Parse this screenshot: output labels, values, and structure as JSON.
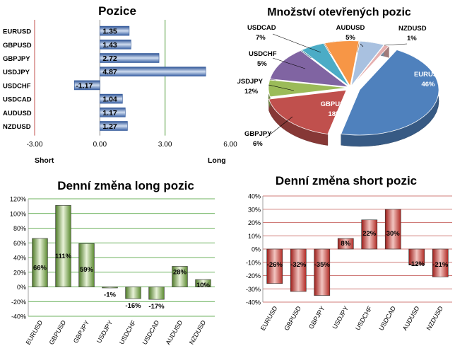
{
  "chart_data": [
    {
      "type": "bar",
      "orientation": "horizontal",
      "title": "Pozice",
      "categories": [
        "EURUSD",
        "GBPUSD",
        "GBPJPY",
        "USDJPY",
        "USDCHF",
        "USDCAD",
        "AUDUSD",
        "NZDUSD"
      ],
      "values": [
        1.35,
        1.43,
        2.72,
        4.87,
        -1.17,
        1.04,
        1.17,
        1.27
      ],
      "value_labels": [
        "1.35",
        "1.43",
        "2.72",
        "4.87",
        "-1.17",
        "1.04",
        "1.17",
        "1.27"
      ],
      "xlim": [
        -3,
        6
      ],
      "ticks": [
        "-3.00",
        "0.00",
        "3.00",
        "6.00"
      ],
      "left_label": "Short",
      "right_label": "Long",
      "colors": {
        "bar": "#4a72b0",
        "neg_line": "#c0504d",
        "pos_line": "#4f9a3a"
      }
    },
    {
      "type": "pie",
      "title": "Množství otevřených pozic",
      "slices": [
        {
          "name": "EURUSD",
          "value": 46,
          "label": "46%",
          "color": "#4f81bd"
        },
        {
          "name": "GBPUSD",
          "value": 18,
          "label": "18%",
          "color": "#c0504d"
        },
        {
          "name": "GBPJPY",
          "value": 6,
          "label": "6%",
          "color": "#9bbb59"
        },
        {
          "name": "USDJPY",
          "value": 12,
          "label": "12%",
          "color": "#8064a2"
        },
        {
          "name": "USDCHF",
          "value": 5,
          "label": "5%",
          "color": "#4bacc6"
        },
        {
          "name": "USDCAD",
          "value": 7,
          "label": "7%",
          "color": "#f79646"
        },
        {
          "name": "AUDUSD",
          "value": 5,
          "label": "5%",
          "color": "#a9c1e0"
        },
        {
          "name": "NZDUSD",
          "value": 1,
          "label": "1%",
          "color": "#e6b0b0"
        }
      ]
    },
    {
      "type": "bar",
      "title": "Denní změna long pozic",
      "categories": [
        "EURUSD",
        "GBPUSD",
        "GBPJPY",
        "USDJPY",
        "USDCHF",
        "USDCAD",
        "AUDUSD",
        "NZDUSD"
      ],
      "values": [
        66,
        111,
        59,
        -1,
        -16,
        -17,
        28,
        10
      ],
      "value_labels": [
        "66%",
        "111%",
        "59%",
        "-1%",
        "-16%",
        "-17%",
        "28%",
        "10%"
      ],
      "ylim": [
        -40,
        120
      ],
      "ticks": [
        "-40%",
        "-20%",
        "0%",
        "20%",
        "40%",
        "60%",
        "80%",
        "100%",
        "120%"
      ],
      "colors": {
        "bar": "#6a9a3a",
        "grid": "#3f9a2a"
      }
    },
    {
      "type": "bar",
      "title": "Denní změna short pozic",
      "categories": [
        "EURUSD",
        "GBPUSD",
        "GBPJPY",
        "USDJPY",
        "USDCHF",
        "USDCAD",
        "AUDUSD",
        "NZDUSD"
      ],
      "values": [
        -26,
        -32,
        -35,
        8,
        22,
        30,
        -12,
        -21
      ],
      "value_labels": [
        "-26%",
        "-32%",
        "-35%",
        "8%",
        "22%",
        "30%",
        "-12%",
        "-21%"
      ],
      "ylim": [
        -40,
        40
      ],
      "ticks": [
        "-40%",
        "-30%",
        "-20%",
        "-10%",
        "0%",
        "10%",
        "20%",
        "30%",
        "40%"
      ],
      "colors": {
        "bar": "#c0302a",
        "grid": "#c0504d"
      }
    }
  ]
}
